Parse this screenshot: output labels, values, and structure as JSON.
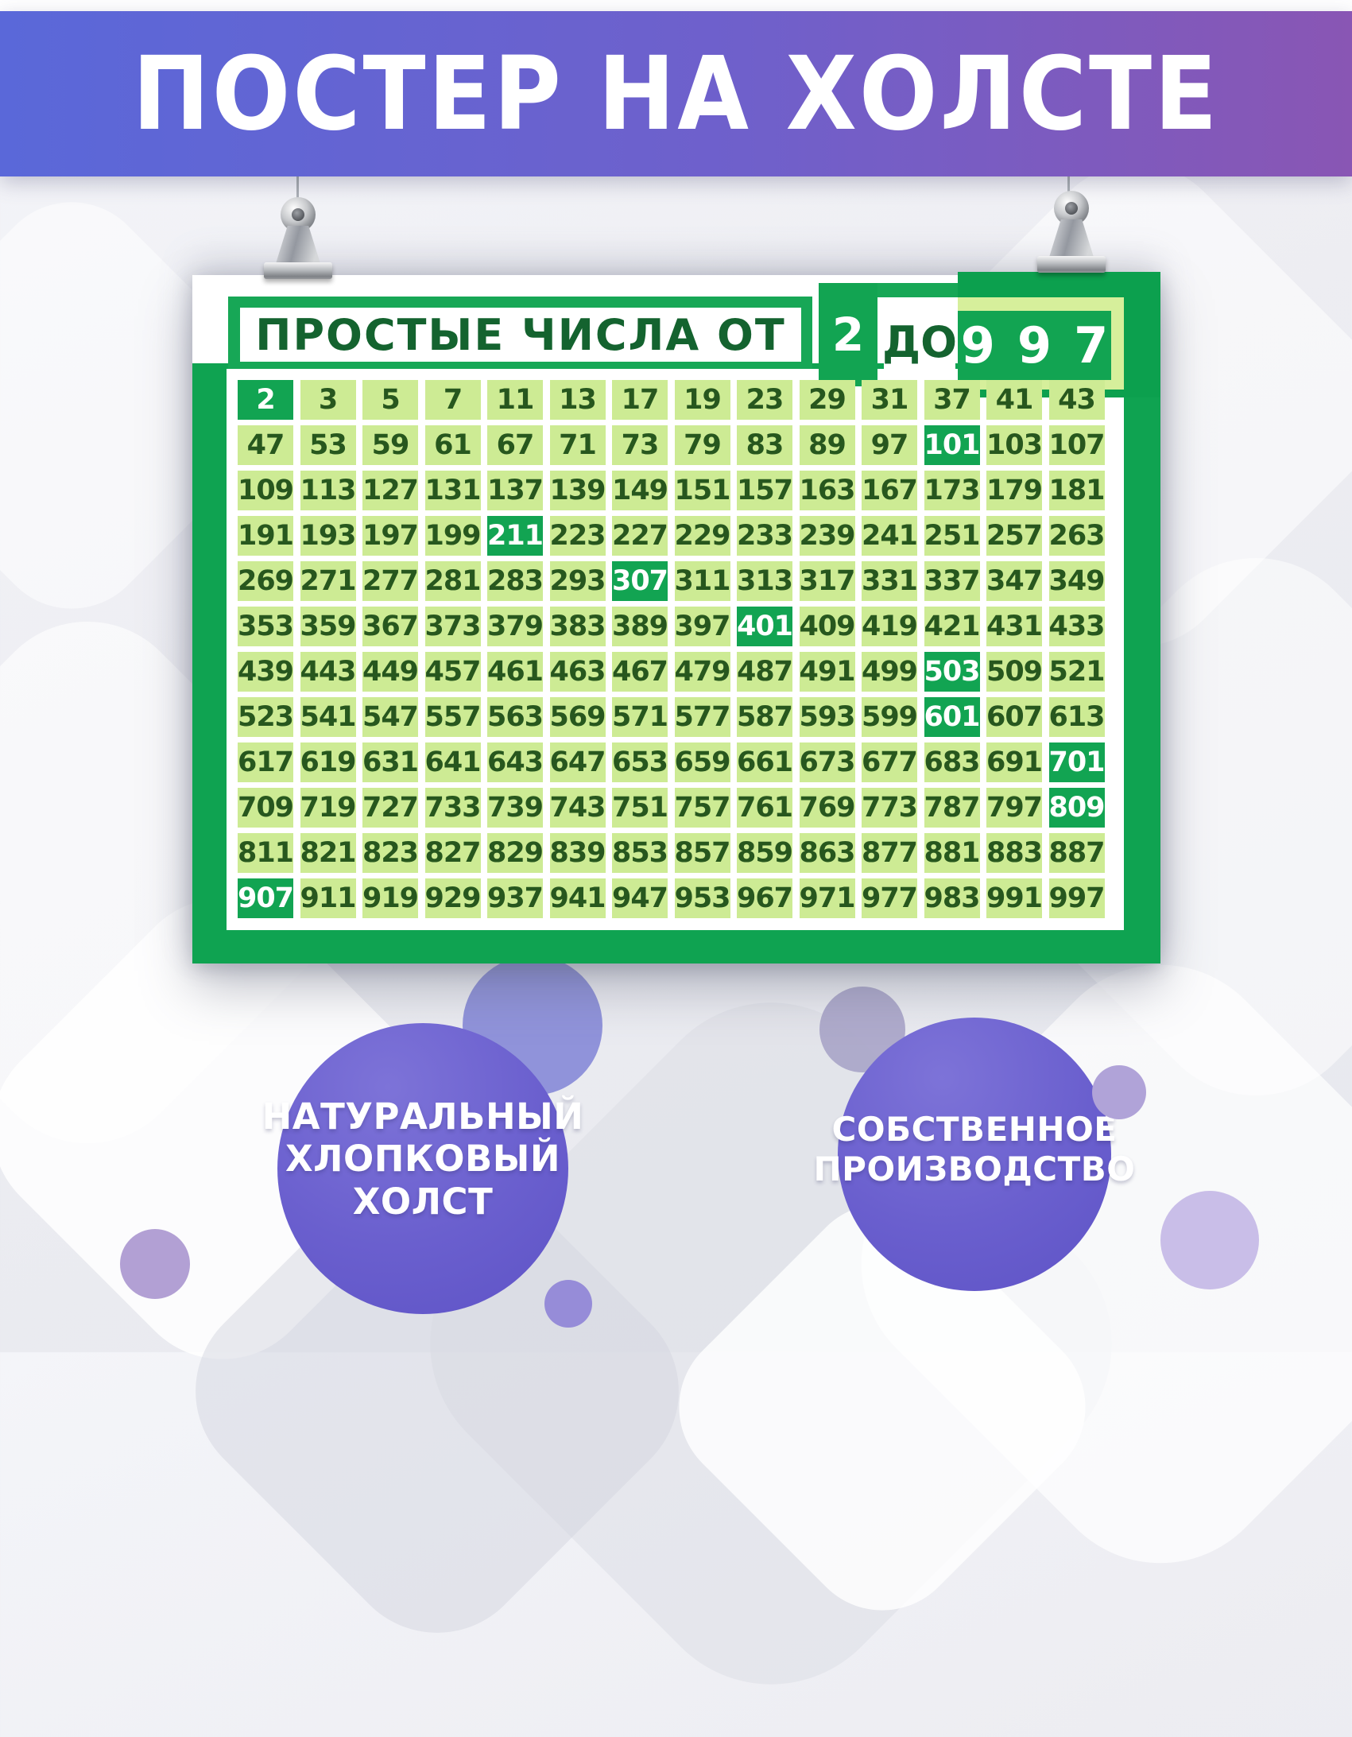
{
  "banner": {
    "title": "ПОСТЕР НА ХОЛСТЕ"
  },
  "poster": {
    "header": {
      "prefix": "ПРОСТЫЕ ЧИСЛА ОТ",
      "from": "2",
      "connector": "ДО",
      "to": "997"
    },
    "table": {
      "columns": 14,
      "rows": [
        [
          2,
          3,
          5,
          7,
          11,
          13,
          17,
          19,
          23,
          29,
          31,
          37,
          41,
          43
        ],
        [
          47,
          53,
          59,
          61,
          67,
          71,
          73,
          79,
          83,
          89,
          97,
          101,
          103,
          107
        ],
        [
          109,
          113,
          127,
          131,
          137,
          139,
          149,
          151,
          157,
          163,
          167,
          173,
          179,
          181
        ],
        [
          191,
          193,
          197,
          199,
          211,
          223,
          227,
          229,
          233,
          239,
          241,
          251,
          257,
          263
        ],
        [
          269,
          271,
          277,
          281,
          283,
          293,
          307,
          311,
          313,
          317,
          331,
          337,
          347,
          349
        ],
        [
          353,
          359,
          367,
          373,
          379,
          383,
          389,
          397,
          401,
          409,
          419,
          421,
          431,
          433
        ],
        [
          439,
          443,
          449,
          457,
          461,
          463,
          467,
          479,
          487,
          491,
          499,
          503,
          509,
          521
        ],
        [
          523,
          541,
          547,
          557,
          563,
          569,
          571,
          577,
          587,
          593,
          599,
          601,
          607,
          613
        ],
        [
          617,
          619,
          631,
          641,
          643,
          647,
          653,
          659,
          661,
          673,
          677,
          683,
          691,
          701
        ],
        [
          709,
          719,
          727,
          733,
          739,
          743,
          751,
          757,
          761,
          769,
          773,
          787,
          797,
          809
        ],
        [
          811,
          821,
          823,
          827,
          829,
          839,
          853,
          857,
          859,
          863,
          877,
          881,
          883,
          887
        ],
        [
          907,
          911,
          919,
          929,
          937,
          941,
          947,
          953,
          967,
          971,
          977,
          983,
          991,
          997
        ]
      ],
      "highlighted": [
        2,
        101,
        211,
        307,
        401,
        503,
        601,
        701,
        809,
        907
      ]
    }
  },
  "badges": {
    "left_lines": [
      "НАТУРАЛЬНЫЙ",
      "ХЛОПКОВЫЙ",
      "ХОЛСТ"
    ],
    "right_lines": [
      "СОБСТВЕННОЕ",
      "ПРОИЗВОДСТВО"
    ]
  },
  "colors": {
    "banner_gradient_start": "#5a68d9",
    "banner_gradient_end": "#8956b4",
    "green_main": "#0fa351",
    "green_highlight": "#12a452",
    "cell_light_green": "#cdeb94",
    "cell_text_green": "#27571e",
    "header_text_green": "#14632f",
    "light_strip_green": "#d6ef9b",
    "badge_purple": "#6a5fce"
  }
}
